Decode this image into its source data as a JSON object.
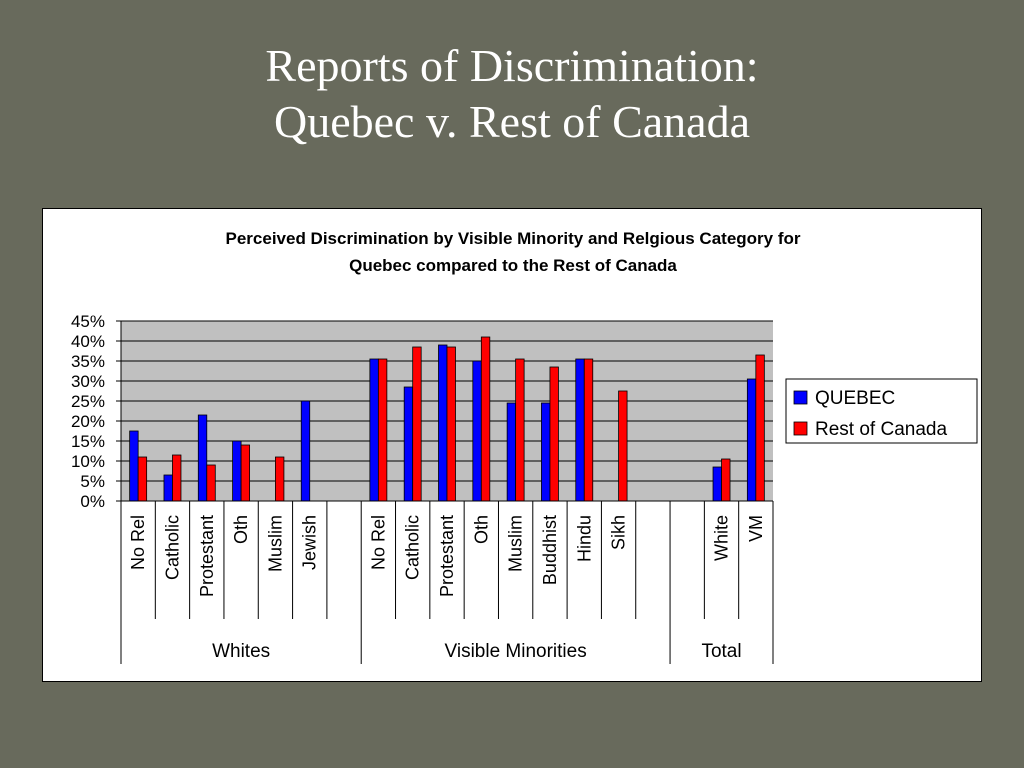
{
  "slide": {
    "title_line1": "Reports of Discrimination:",
    "title_line2": "Quebec v. Rest of Canada"
  },
  "chart_data": {
    "type": "bar",
    "title_line1": "Perceived Discrimination by Visible Minority and Relgious Category for",
    "title_line2": "Quebec compared to the Rest of Canada",
    "ylim": [
      0,
      45
    ],
    "yticks": [
      "0%",
      "5%",
      "10%",
      "15%",
      "20%",
      "25%",
      "30%",
      "35%",
      "40%",
      "45%"
    ],
    "grid": true,
    "legend_position": "right",
    "groups": [
      "Whites",
      "Visible Minorities",
      "Total"
    ],
    "categories": [
      {
        "label": "No Rel",
        "group": "Whites"
      },
      {
        "label": "Catholic",
        "group": "Whites"
      },
      {
        "label": "Protestant",
        "group": "Whites"
      },
      {
        "label": "Oth",
        "group": "Whites"
      },
      {
        "label": "Muslim",
        "group": "Whites"
      },
      {
        "label": "Jewish",
        "group": "Whites"
      },
      {
        "label": "",
        "group": "Whites"
      },
      {
        "label": "No Rel",
        "group": "Visible Minorities"
      },
      {
        "label": "Catholic",
        "group": "Visible Minorities"
      },
      {
        "label": "Protestant",
        "group": "Visible Minorities"
      },
      {
        "label": "Oth",
        "group": "Visible Minorities"
      },
      {
        "label": "Muslim",
        "group": "Visible Minorities"
      },
      {
        "label": "Buddhist",
        "group": "Visible Minorities"
      },
      {
        "label": "Hindu",
        "group": "Visible Minorities"
      },
      {
        "label": "Sikh",
        "group": "Visible Minorities"
      },
      {
        "label": "",
        "group": "Visible Minorities"
      },
      {
        "label": "",
        "group": "Total"
      },
      {
        "label": "White",
        "group": "Total"
      },
      {
        "label": "VM",
        "group": "Total"
      }
    ],
    "series": [
      {
        "name": "QUEBEC",
        "color": "#0000ff",
        "values": [
          17.5,
          6.5,
          21.5,
          15,
          null,
          25,
          null,
          35.5,
          28.5,
          39,
          35,
          24.5,
          24.5,
          35.5,
          null,
          null,
          null,
          8.5,
          30.5
        ]
      },
      {
        "name": "Rest of Canada",
        "color": "#ff0000",
        "values": [
          11,
          11.5,
          9,
          14,
          11,
          null,
          null,
          35.5,
          38.5,
          38.5,
          41,
          35.5,
          33.5,
          35.5,
          27.5,
          null,
          null,
          10.5,
          36.5
        ]
      }
    ],
    "plot_background": "#c0c0c0"
  }
}
